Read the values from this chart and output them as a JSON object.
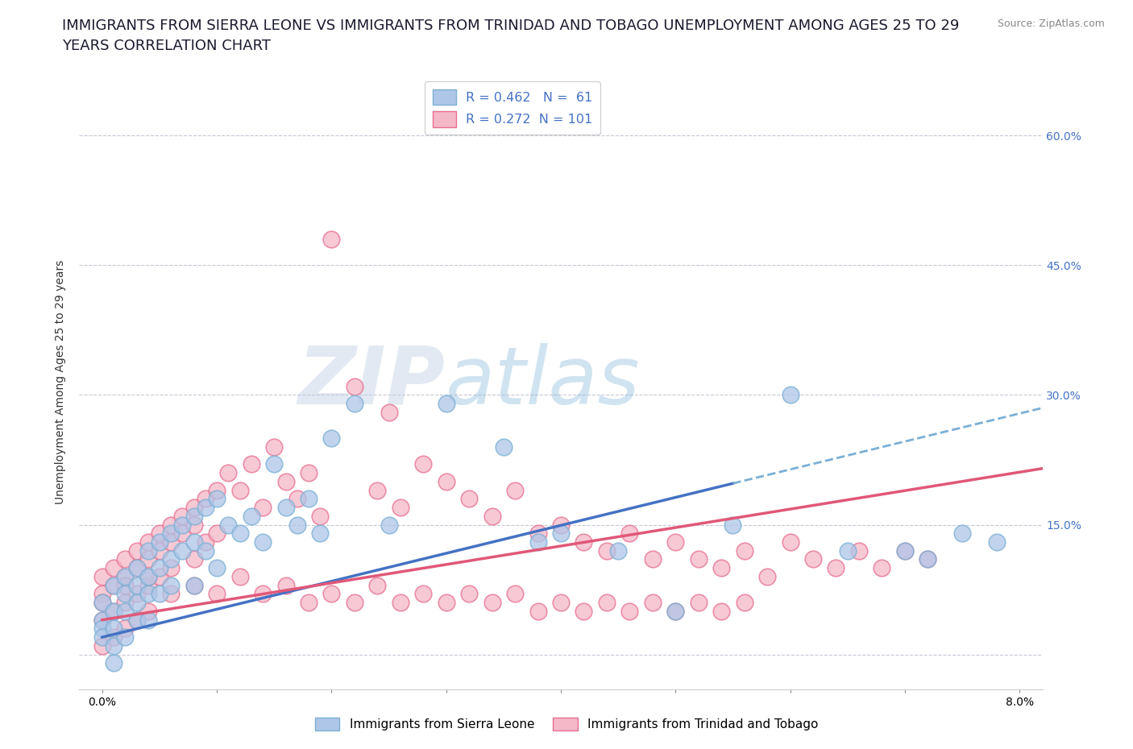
{
  "title_line1": "IMMIGRANTS FROM SIERRA LEONE VS IMMIGRANTS FROM TRINIDAD AND TOBAGO UNEMPLOYMENT AMONG AGES 25 TO 29",
  "title_line2": "YEARS CORRELATION CHART",
  "source_text": "Source: ZipAtlas.com",
  "ylabel": "Unemployment Among Ages 25 to 29 years",
  "xlim": [
    -0.002,
    0.082
  ],
  "ylim": [
    -0.04,
    0.67
  ],
  "ytick_positions": [
    0.0,
    0.15,
    0.3,
    0.45,
    0.6
  ],
  "ytick_labels": [
    "",
    "15.0%",
    "30.0%",
    "45.0%",
    "60.0%"
  ],
  "grid_color": "#c8c8d8",
  "background_color": "#ffffff",
  "watermark_zip": "ZIP",
  "watermark_atlas": "atlas",
  "series": [
    {
      "name": "Immigrants from Sierra Leone",
      "R": 0.462,
      "N": 61,
      "face_color": "#aec6e8",
      "edge_color": "#7bafd4",
      "trend_color": "#4472c4",
      "trend_dashed_color": "#7bafd4",
      "trend_x": [
        0.0,
        0.082
      ],
      "trend_y": [
        0.02,
        0.285
      ],
      "trend_solid_end": 0.055,
      "x": [
        0.0,
        0.0,
        0.0,
        0.0,
        0.001,
        0.001,
        0.001,
        0.001,
        0.001,
        0.002,
        0.002,
        0.002,
        0.002,
        0.003,
        0.003,
        0.003,
        0.003,
        0.004,
        0.004,
        0.004,
        0.004,
        0.005,
        0.005,
        0.005,
        0.006,
        0.006,
        0.006,
        0.007,
        0.007,
        0.008,
        0.008,
        0.008,
        0.009,
        0.009,
        0.01,
        0.01,
        0.011,
        0.012,
        0.013,
        0.014,
        0.015,
        0.016,
        0.017,
        0.018,
        0.019,
        0.02,
        0.022,
        0.025,
        0.03,
        0.035,
        0.038,
        0.04,
        0.045,
        0.05,
        0.055,
        0.06,
        0.065,
        0.07,
        0.072,
        0.075,
        0.078
      ],
      "y": [
        0.06,
        0.04,
        0.03,
        0.02,
        0.08,
        0.05,
        0.03,
        0.01,
        -0.01,
        0.09,
        0.07,
        0.05,
        0.02,
        0.1,
        0.08,
        0.06,
        0.04,
        0.12,
        0.09,
        0.07,
        0.04,
        0.13,
        0.1,
        0.07,
        0.14,
        0.11,
        0.08,
        0.15,
        0.12,
        0.16,
        0.13,
        0.08,
        0.17,
        0.12,
        0.18,
        0.1,
        0.15,
        0.14,
        0.16,
        0.13,
        0.22,
        0.17,
        0.15,
        0.18,
        0.14,
        0.25,
        0.29,
        0.15,
        0.29,
        0.24,
        0.13,
        0.14,
        0.12,
        0.05,
        0.15,
        0.3,
        0.12,
        0.12,
        0.11,
        0.14,
        0.13
      ]
    },
    {
      "name": "Immigrants from Trinidad and Tobago",
      "R": 0.272,
      "N": 101,
      "face_color": "#f4b8c8",
      "edge_color": "#e87090",
      "trend_color": "#e05878",
      "trend_x": [
        0.0,
        0.082
      ],
      "trend_y": [
        0.04,
        0.215
      ],
      "x": [
        0.0,
        0.0,
        0.0,
        0.0,
        0.0,
        0.001,
        0.001,
        0.001,
        0.001,
        0.002,
        0.002,
        0.002,
        0.002,
        0.003,
        0.003,
        0.003,
        0.003,
        0.004,
        0.004,
        0.004,
        0.004,
        0.005,
        0.005,
        0.005,
        0.006,
        0.006,
        0.006,
        0.007,
        0.007,
        0.008,
        0.008,
        0.008,
        0.009,
        0.009,
        0.01,
        0.01,
        0.011,
        0.012,
        0.013,
        0.014,
        0.015,
        0.016,
        0.017,
        0.018,
        0.019,
        0.02,
        0.022,
        0.024,
        0.026,
        0.028,
        0.03,
        0.032,
        0.034,
        0.036,
        0.038,
        0.04,
        0.042,
        0.044,
        0.046,
        0.048,
        0.05,
        0.052,
        0.054,
        0.056,
        0.058,
        0.06,
        0.062,
        0.064,
        0.066,
        0.068,
        0.07,
        0.072,
        0.002,
        0.004,
        0.006,
        0.008,
        0.01,
        0.012,
        0.014,
        0.016,
        0.018,
        0.02,
        0.022,
        0.024,
        0.026,
        0.028,
        0.03,
        0.032,
        0.034,
        0.036,
        0.038,
        0.04,
        0.042,
        0.044,
        0.046,
        0.048,
        0.05,
        0.052,
        0.054,
        0.056,
        0.025
      ],
      "y": [
        0.09,
        0.07,
        0.06,
        0.04,
        0.01,
        0.1,
        0.08,
        0.05,
        0.02,
        0.11,
        0.09,
        0.06,
        0.03,
        0.12,
        0.1,
        0.07,
        0.04,
        0.13,
        0.11,
        0.08,
        0.05,
        0.14,
        0.12,
        0.09,
        0.15,
        0.13,
        0.1,
        0.16,
        0.14,
        0.17,
        0.15,
        0.11,
        0.18,
        0.13,
        0.19,
        0.14,
        0.21,
        0.19,
        0.22,
        0.17,
        0.24,
        0.2,
        0.18,
        0.21,
        0.16,
        0.48,
        0.31,
        0.19,
        0.17,
        0.22,
        0.2,
        0.18,
        0.16,
        0.19,
        0.14,
        0.15,
        0.13,
        0.12,
        0.14,
        0.11,
        0.13,
        0.11,
        0.1,
        0.12,
        0.09,
        0.13,
        0.11,
        0.1,
        0.12,
        0.1,
        0.12,
        0.11,
        0.08,
        0.09,
        0.07,
        0.08,
        0.07,
        0.09,
        0.07,
        0.08,
        0.06,
        0.07,
        0.06,
        0.08,
        0.06,
        0.07,
        0.06,
        0.07,
        0.06,
        0.07,
        0.05,
        0.06,
        0.05,
        0.06,
        0.05,
        0.06,
        0.05,
        0.06,
        0.05,
        0.06,
        0.28
      ]
    }
  ],
  "legend_labels": [
    "Immigrants from Sierra Leone",
    "Immigrants from Trinidad and Tobago"
  ],
  "legend_face_colors": [
    "#aec6e8",
    "#f4b8c8"
  ],
  "legend_edge_colors": [
    "#7bafd4",
    "#e87090"
  ],
  "title_color": "#1a1a2e",
  "title_fontsize": 13,
  "axis_label_fontsize": 10,
  "tick_fontsize": 10,
  "source_fontsize": 9
}
